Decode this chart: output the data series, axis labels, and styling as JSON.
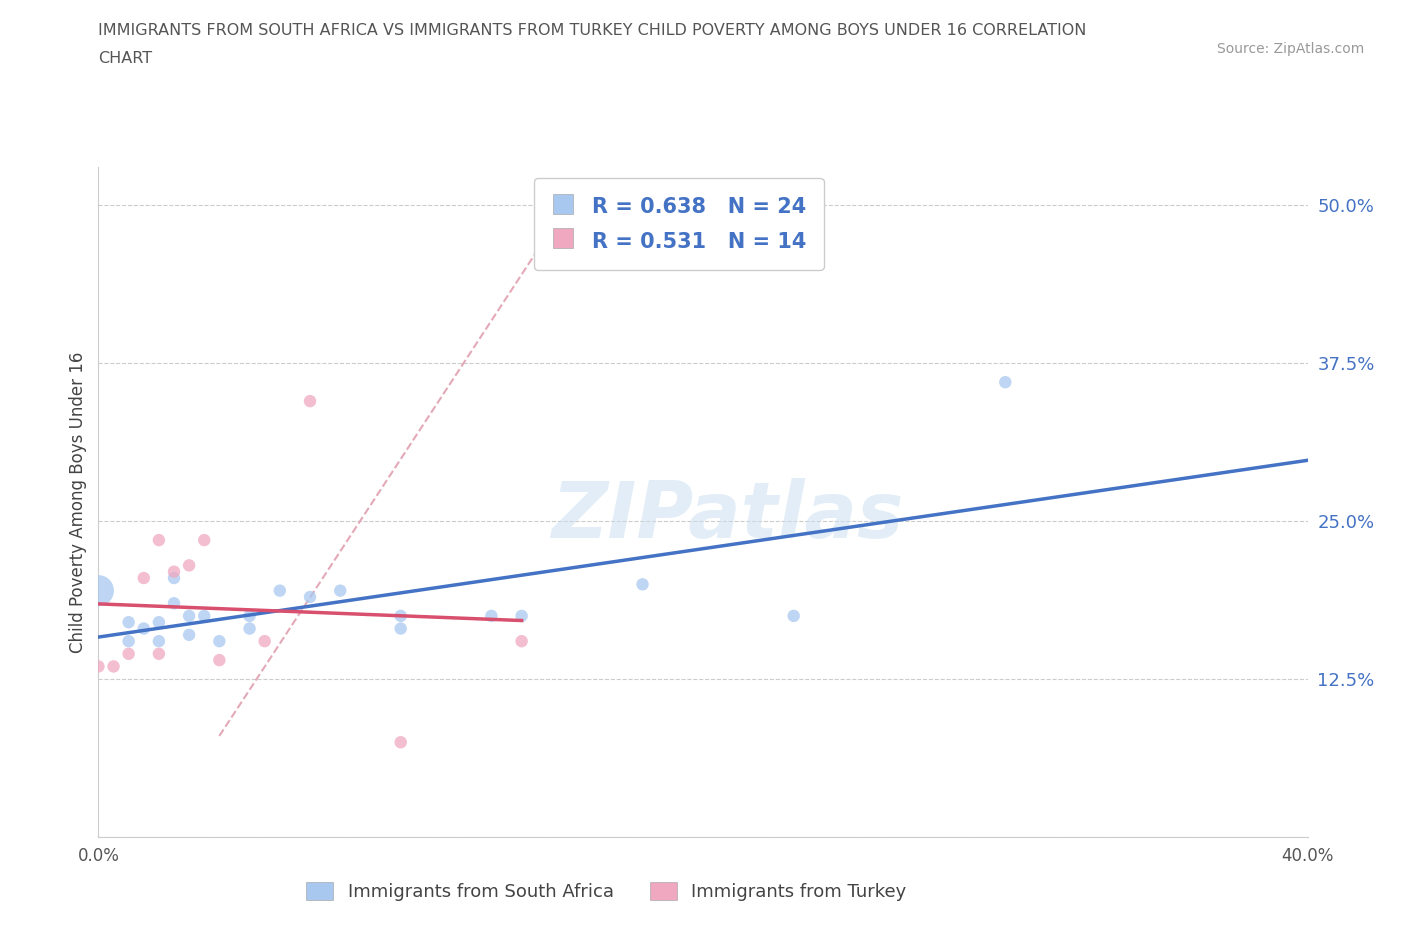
{
  "title_line1": "IMMIGRANTS FROM SOUTH AFRICA VS IMMIGRANTS FROM TURKEY CHILD POVERTY AMONG BOYS UNDER 16 CORRELATION",
  "title_line2": "CHART",
  "source_text": "Source: ZipAtlas.com",
  "ylabel": "Child Poverty Among Boys Under 16",
  "xlim": [
    0.0,
    0.4
  ],
  "ylim": [
    0.0,
    0.53
  ],
  "yticks": [
    0.0,
    0.125,
    0.25,
    0.375,
    0.5
  ],
  "ytick_labels": [
    "",
    "12.5%",
    "25.0%",
    "37.5%",
    "50.0%"
  ],
  "xticks": [
    0.0,
    0.05,
    0.1,
    0.15,
    0.2,
    0.25,
    0.3,
    0.35,
    0.4
  ],
  "xtick_labels": [
    "0.0%",
    "",
    "",
    "",
    "",
    "",
    "",
    "",
    "40.0%"
  ],
  "south_africa_color": "#a8c8f0",
  "turkey_color": "#f0a8c0",
  "trend_sa_color": "#4472c4",
  "trend_turkey_color": "#d94f6e",
  "trend_dashed_color": "#e0a0b0",
  "R_sa": 0.638,
  "N_sa": 24,
  "R_turkey": 0.531,
  "N_turkey": 14,
  "watermark": "ZIPatlas",
  "legend_label_sa": "Immigrants from South Africa",
  "legend_label_turkey": "Immigrants from Turkey",
  "sa_x": [
    0.0,
    0.01,
    0.01,
    0.015,
    0.02,
    0.02,
    0.025,
    0.025,
    0.03,
    0.03,
    0.035,
    0.04,
    0.05,
    0.05,
    0.06,
    0.07,
    0.08,
    0.1,
    0.1,
    0.13,
    0.14,
    0.18,
    0.23,
    0.3
  ],
  "sa_y": [
    0.195,
    0.155,
    0.17,
    0.165,
    0.155,
    0.17,
    0.185,
    0.205,
    0.16,
    0.175,
    0.175,
    0.155,
    0.165,
    0.175,
    0.195,
    0.19,
    0.195,
    0.165,
    0.175,
    0.175,
    0.175,
    0.2,
    0.175,
    0.36
  ],
  "sa_size": [
    500,
    80,
    80,
    80,
    80,
    80,
    80,
    80,
    80,
    80,
    80,
    80,
    80,
    80,
    80,
    80,
    80,
    80,
    80,
    80,
    80,
    80,
    80,
    80
  ],
  "turkey_x": [
    0.0,
    0.005,
    0.01,
    0.015,
    0.02,
    0.02,
    0.025,
    0.03,
    0.035,
    0.04,
    0.055,
    0.07,
    0.1,
    0.14
  ],
  "turkey_y": [
    0.135,
    0.135,
    0.145,
    0.205,
    0.145,
    0.235,
    0.21,
    0.215,
    0.235,
    0.14,
    0.155,
    0.345,
    0.075,
    0.155
  ],
  "turkey_size": [
    80,
    80,
    80,
    80,
    80,
    80,
    80,
    80,
    80,
    80,
    80,
    80,
    80,
    80
  ]
}
